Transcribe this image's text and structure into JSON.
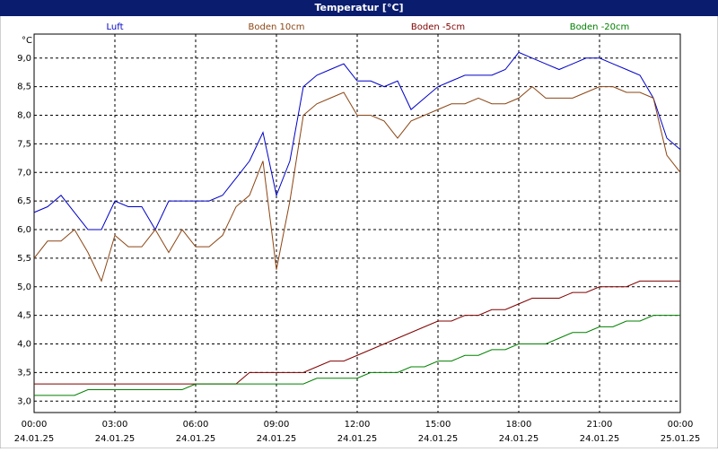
{
  "chart_data": {
    "type": "line",
    "title": "Temperatur [°C]",
    "y_unit": "°C",
    "x": [
      0,
      0.5,
      1,
      1.5,
      2,
      2.5,
      3,
      3.5,
      4,
      4.5,
      5,
      5.5,
      6,
      6.5,
      7,
      7.5,
      8,
      8.5,
      9,
      9.5,
      10,
      10.5,
      11,
      11.5,
      12,
      12.5,
      13,
      13.5,
      14,
      14.5,
      15,
      15.5,
      16,
      16.5,
      17,
      17.5,
      18,
      18.5,
      19,
      19.5,
      20,
      20.5,
      21,
      21.5,
      22,
      22.5,
      23,
      23.5,
      24
    ],
    "xlim": [
      0,
      24
    ],
    "xticks": [
      {
        "value": 0,
        "label": "00:00"
      },
      {
        "value": 3,
        "label": "03:00"
      },
      {
        "value": 6,
        "label": "06:00"
      },
      {
        "value": 9,
        "label": "09:00"
      },
      {
        "value": 12,
        "label": "12:00"
      },
      {
        "value": 15,
        "label": "15:00"
      },
      {
        "value": 18,
        "label": "18:00"
      },
      {
        "value": 21,
        "label": "21:00"
      },
      {
        "value": 24,
        "label": "00:00"
      }
    ],
    "x_tick_dates": [
      "24.01.25",
      "24.01.25",
      "24.01.25",
      "24.01.25",
      "24.01.25",
      "24.01.25",
      "24.01.25",
      "24.01.25",
      "25.01.25"
    ],
    "ylim": [
      2.8,
      9.42
    ],
    "yticks": [
      {
        "value": 3,
        "label": "3,0"
      },
      {
        "value": 3.5,
        "label": "3,5"
      },
      {
        "value": 4,
        "label": "4,0"
      },
      {
        "value": 4.5,
        "label": "4,5"
      },
      {
        "value": 5,
        "label": "5,0"
      },
      {
        "value": 5.5,
        "label": "5,5"
      },
      {
        "value": 6,
        "label": "6,0"
      },
      {
        "value": 6.5,
        "label": "6,5"
      },
      {
        "value": 7,
        "label": "7,0"
      },
      {
        "value": 7.5,
        "label": "7,5"
      },
      {
        "value": 8,
        "label": "8,0"
      },
      {
        "value": 8.5,
        "label": "8,5"
      },
      {
        "value": 9,
        "label": "9,0"
      }
    ],
    "grid": true,
    "series": [
      {
        "name": "Luft",
        "color": "#0000c8",
        "values": [
          6.3,
          6.4,
          6.6,
          6.3,
          6.0,
          6.0,
          6.5,
          6.4,
          6.4,
          6.0,
          6.5,
          6.5,
          6.5,
          6.5,
          6.6,
          6.9,
          7.2,
          7.7,
          6.6,
          7.2,
          8.5,
          8.7,
          8.8,
          8.9,
          8.6,
          8.6,
          8.5,
          8.6,
          8.1,
          8.3,
          8.5,
          8.6,
          8.7,
          8.7,
          8.7,
          8.8,
          9.1,
          9.0,
          8.9,
          8.8,
          8.9,
          9.0,
          9.0,
          8.9,
          8.8,
          8.7,
          8.3,
          7.6,
          7.4
        ]
      },
      {
        "name": "Boden 10cm",
        "color": "#8b4513",
        "values": [
          5.5,
          5.8,
          5.8,
          6.0,
          5.6,
          5.1,
          5.9,
          5.7,
          5.7,
          6.0,
          5.6,
          6.0,
          5.7,
          5.7,
          5.9,
          6.4,
          6.6,
          7.2,
          5.3,
          6.5,
          8.0,
          8.2,
          8.3,
          8.4,
          8.0,
          8.0,
          7.9,
          7.6,
          7.9,
          8.0,
          8.1,
          8.2,
          8.2,
          8.3,
          8.2,
          8.2,
          8.3,
          8.5,
          8.3,
          8.3,
          8.3,
          8.4,
          8.5,
          8.5,
          8.4,
          8.4,
          8.3,
          7.3,
          7.0
        ]
      },
      {
        "name": "Boden -5cm",
        "color": "#800000",
        "values": [
          3.3,
          3.3,
          3.3,
          3.3,
          3.3,
          3.3,
          3.3,
          3.3,
          3.3,
          3.3,
          3.3,
          3.3,
          3.3,
          3.3,
          3.3,
          3.3,
          3.5,
          3.5,
          3.5,
          3.5,
          3.5,
          3.6,
          3.7,
          3.7,
          3.8,
          3.9,
          4.0,
          4.1,
          4.2,
          4.3,
          4.4,
          4.4,
          4.5,
          4.5,
          4.6,
          4.6,
          4.7,
          4.8,
          4.8,
          4.8,
          4.9,
          4.9,
          5.0,
          5.0,
          5.0,
          5.1,
          5.1,
          5.1,
          5.1
        ]
      },
      {
        "name": "Boden -20cm",
        "color": "#008000",
        "values": [
          3.1,
          3.1,
          3.1,
          3.1,
          3.2,
          3.2,
          3.2,
          3.2,
          3.2,
          3.2,
          3.2,
          3.2,
          3.3,
          3.3,
          3.3,
          3.3,
          3.3,
          3.3,
          3.3,
          3.3,
          3.3,
          3.4,
          3.4,
          3.4,
          3.4,
          3.5,
          3.5,
          3.5,
          3.6,
          3.6,
          3.7,
          3.7,
          3.8,
          3.8,
          3.9,
          3.9,
          4.0,
          4.0,
          4.0,
          4.1,
          4.2,
          4.2,
          4.3,
          4.3,
          4.4,
          4.4,
          4.5,
          4.5,
          4.5
        ]
      }
    ]
  }
}
